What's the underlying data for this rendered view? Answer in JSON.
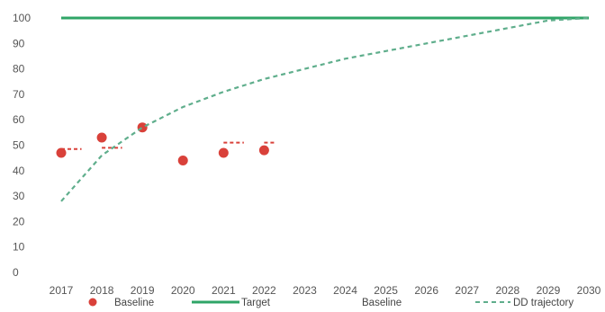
{
  "chart_data": {
    "type": "line",
    "x": [
      "2017",
      "2018",
      "2019",
      "2020",
      "2021",
      "2022",
      "2023",
      "2024",
      "2025",
      "2026",
      "2027",
      "2028",
      "2029",
      "2030"
    ],
    "ylim": [
      0,
      100
    ],
    "yticks": [
      "0",
      "10",
      "20",
      "30",
      "40",
      "50",
      "60",
      "70",
      "80",
      "90",
      "100"
    ],
    "grid": false,
    "legend_position": "bottom",
    "series": [
      {
        "name": "Baseline",
        "kind": "scatter",
        "color": "#d9413a",
        "points": [
          {
            "x": "2017",
            "y": 47
          },
          {
            "x": "2018",
            "y": 53
          },
          {
            "x": "2019",
            "y": 57
          },
          {
            "x": "2020",
            "y": 44
          },
          {
            "x": "2021",
            "y": 47
          },
          {
            "x": "2022",
            "y": 48
          }
        ]
      },
      {
        "name": "Target",
        "kind": "line",
        "color": "#2fa567",
        "points": [
          {
            "x": "2017",
            "y": 100
          },
          {
            "x": "2030",
            "y": 100
          }
        ]
      },
      {
        "name": "Baseline",
        "kind": "dashed-segments",
        "color": "#d9413a",
        "segments": [
          [
            {
              "x": "2017",
              "y": 48.5
            },
            {
              "x": "2017.5",
              "y": 48.5
            }
          ],
          [
            {
              "x": "2018",
              "y": 49
            },
            {
              "x": "2018.5",
              "y": 49
            }
          ],
          [
            {
              "x": "2021",
              "y": 51
            },
            {
              "x": "2021.5",
              "y": 51
            }
          ],
          [
            {
              "x": "2022",
              "y": 51
            },
            {
              "x": "2022.3",
              "y": 51
            }
          ]
        ]
      },
      {
        "name": "DD trajectory",
        "kind": "dashed-line",
        "color": "#5fae8c",
        "points": [
          {
            "x": "2017",
            "y": 28
          },
          {
            "x": "2018",
            "y": 46
          },
          {
            "x": "2019",
            "y": 57
          },
          {
            "x": "2020",
            "y": 65
          },
          {
            "x": "2021",
            "y": 71
          },
          {
            "x": "2022",
            "y": 76
          },
          {
            "x": "2023",
            "y": 80
          },
          {
            "x": "2024",
            "y": 84
          },
          {
            "x": "2025",
            "y": 87
          },
          {
            "x": "2026",
            "y": 90
          },
          {
            "x": "2027",
            "y": 93
          },
          {
            "x": "2028",
            "y": 96
          },
          {
            "x": "2029",
            "y": 99
          },
          {
            "x": "2030",
            "y": 100
          }
        ]
      }
    ],
    "legend": [
      {
        "label": "Baseline",
        "marker": "dot",
        "color": "#d9413a"
      },
      {
        "label": "Target",
        "marker": "line",
        "color": "#2fa567"
      },
      {
        "label": "Baseline",
        "marker": "none",
        "color": "#d9413a"
      },
      {
        "label": "DD trajectory",
        "marker": "dash",
        "color": "#5fae8c"
      }
    ]
  }
}
